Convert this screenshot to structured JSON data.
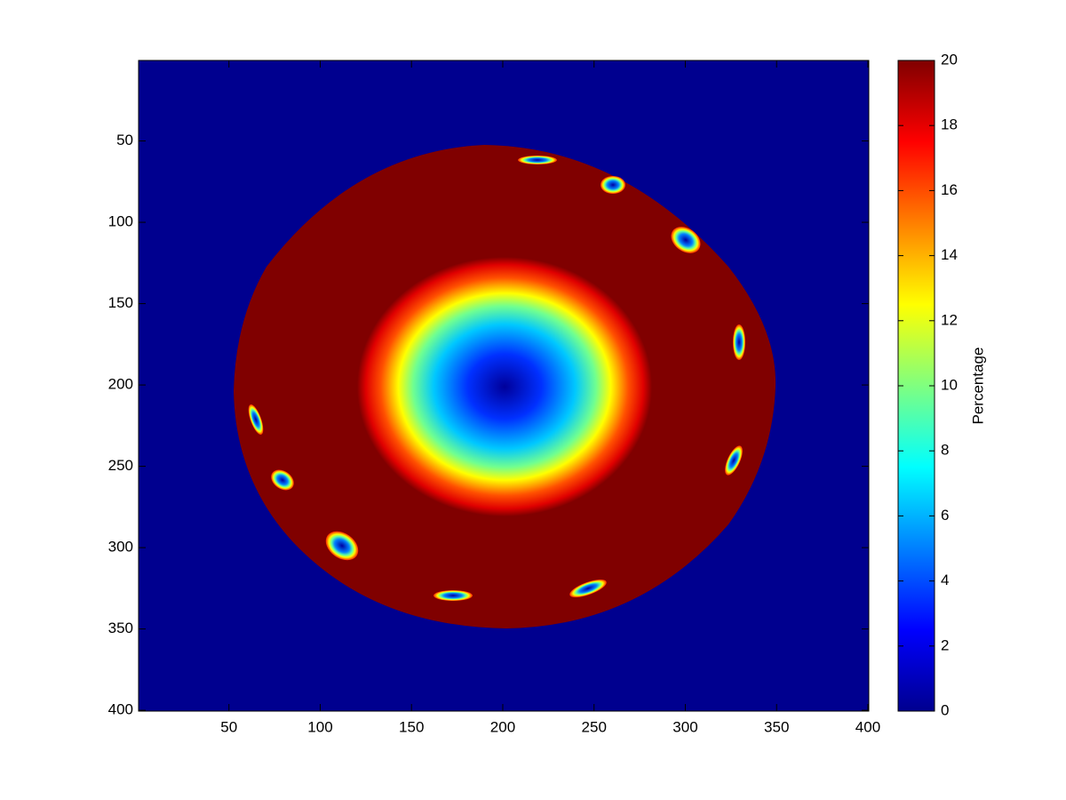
{
  "chart_data": {
    "type": "image",
    "xlim": [
      0.5,
      400.5
    ],
    "xticks": [
      50,
      100,
      150,
      200,
      250,
      300,
      350,
      400
    ],
    "ylim": [
      0.5,
      400.5
    ],
    "yticks": [
      50,
      100,
      150,
      200,
      250,
      300,
      350,
      400
    ],
    "y_reversed": true,
    "colorbar": {
      "label": "Percentage",
      "clim": [
        0,
        20
      ],
      "ticks": [
        0,
        2,
        4,
        6,
        8,
        10,
        12,
        14,
        16,
        18,
        20
      ],
      "colormap": "jet"
    }
  }
}
